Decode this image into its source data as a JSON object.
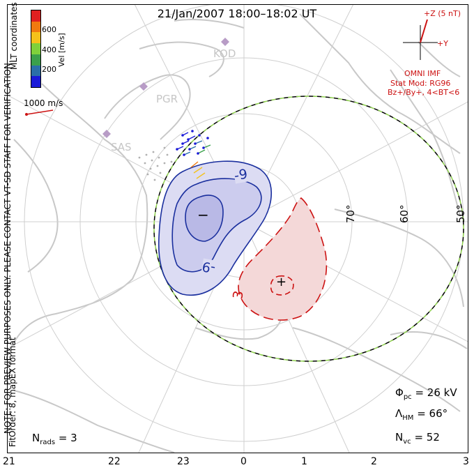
{
  "title": "21/Jan/2007 18:00–18:02 UT",
  "coords_label": "MLT coordinates",
  "colorbar": {
    "label": "Vel [m/s]",
    "ticks": [
      "600",
      "400",
      "200"
    ],
    "colors": [
      "#e02020",
      "#f07a10",
      "#f5c21b",
      "#7fd13b",
      "#3aa04b",
      "#2a6fa8",
      "#1a1ad8"
    ]
  },
  "velocity_scale": "1000 m/s",
  "stations": [
    "KOD",
    "PGR",
    "SAS"
  ],
  "latitude_labels": [
    "70°",
    "60°",
    "50°"
  ],
  "contours": {
    "negative_label": "-9",
    "positive_label": "3",
    "min_marker": "−",
    "max_marker": "+"
  },
  "imf": {
    "z_label": "+Z (5 nT)",
    "y_label": "+Y",
    "source": "OMNI IMF",
    "model": "Stat Mod: RG96",
    "condition": "Bz+/By+, 4<BT<6"
  },
  "note": "NOTE: FOR PREVIEW PURPOSES ONLY. PLEASE CONTACT VT-SD STAFF FOR VERIFICATION.",
  "fit": "FitOrder: 8, mapEX format",
  "stats": {
    "nrads_symbol": "N",
    "nrads_sub": "rads",
    "nrads_value": "= 3",
    "phi_symbol": "Φ",
    "phi_sub": "pc",
    "phi_value": "= 26 kV",
    "lambda_symbol": "Λ",
    "lambda_sub": "HM",
    "lambda_value": "= 66°",
    "nvc_symbol": "N",
    "nvc_sub": "vc",
    "nvc_value": "= 52"
  },
  "mlt_labels": [
    "21",
    "22",
    "23",
    "0",
    "1",
    "2",
    "3"
  ]
}
